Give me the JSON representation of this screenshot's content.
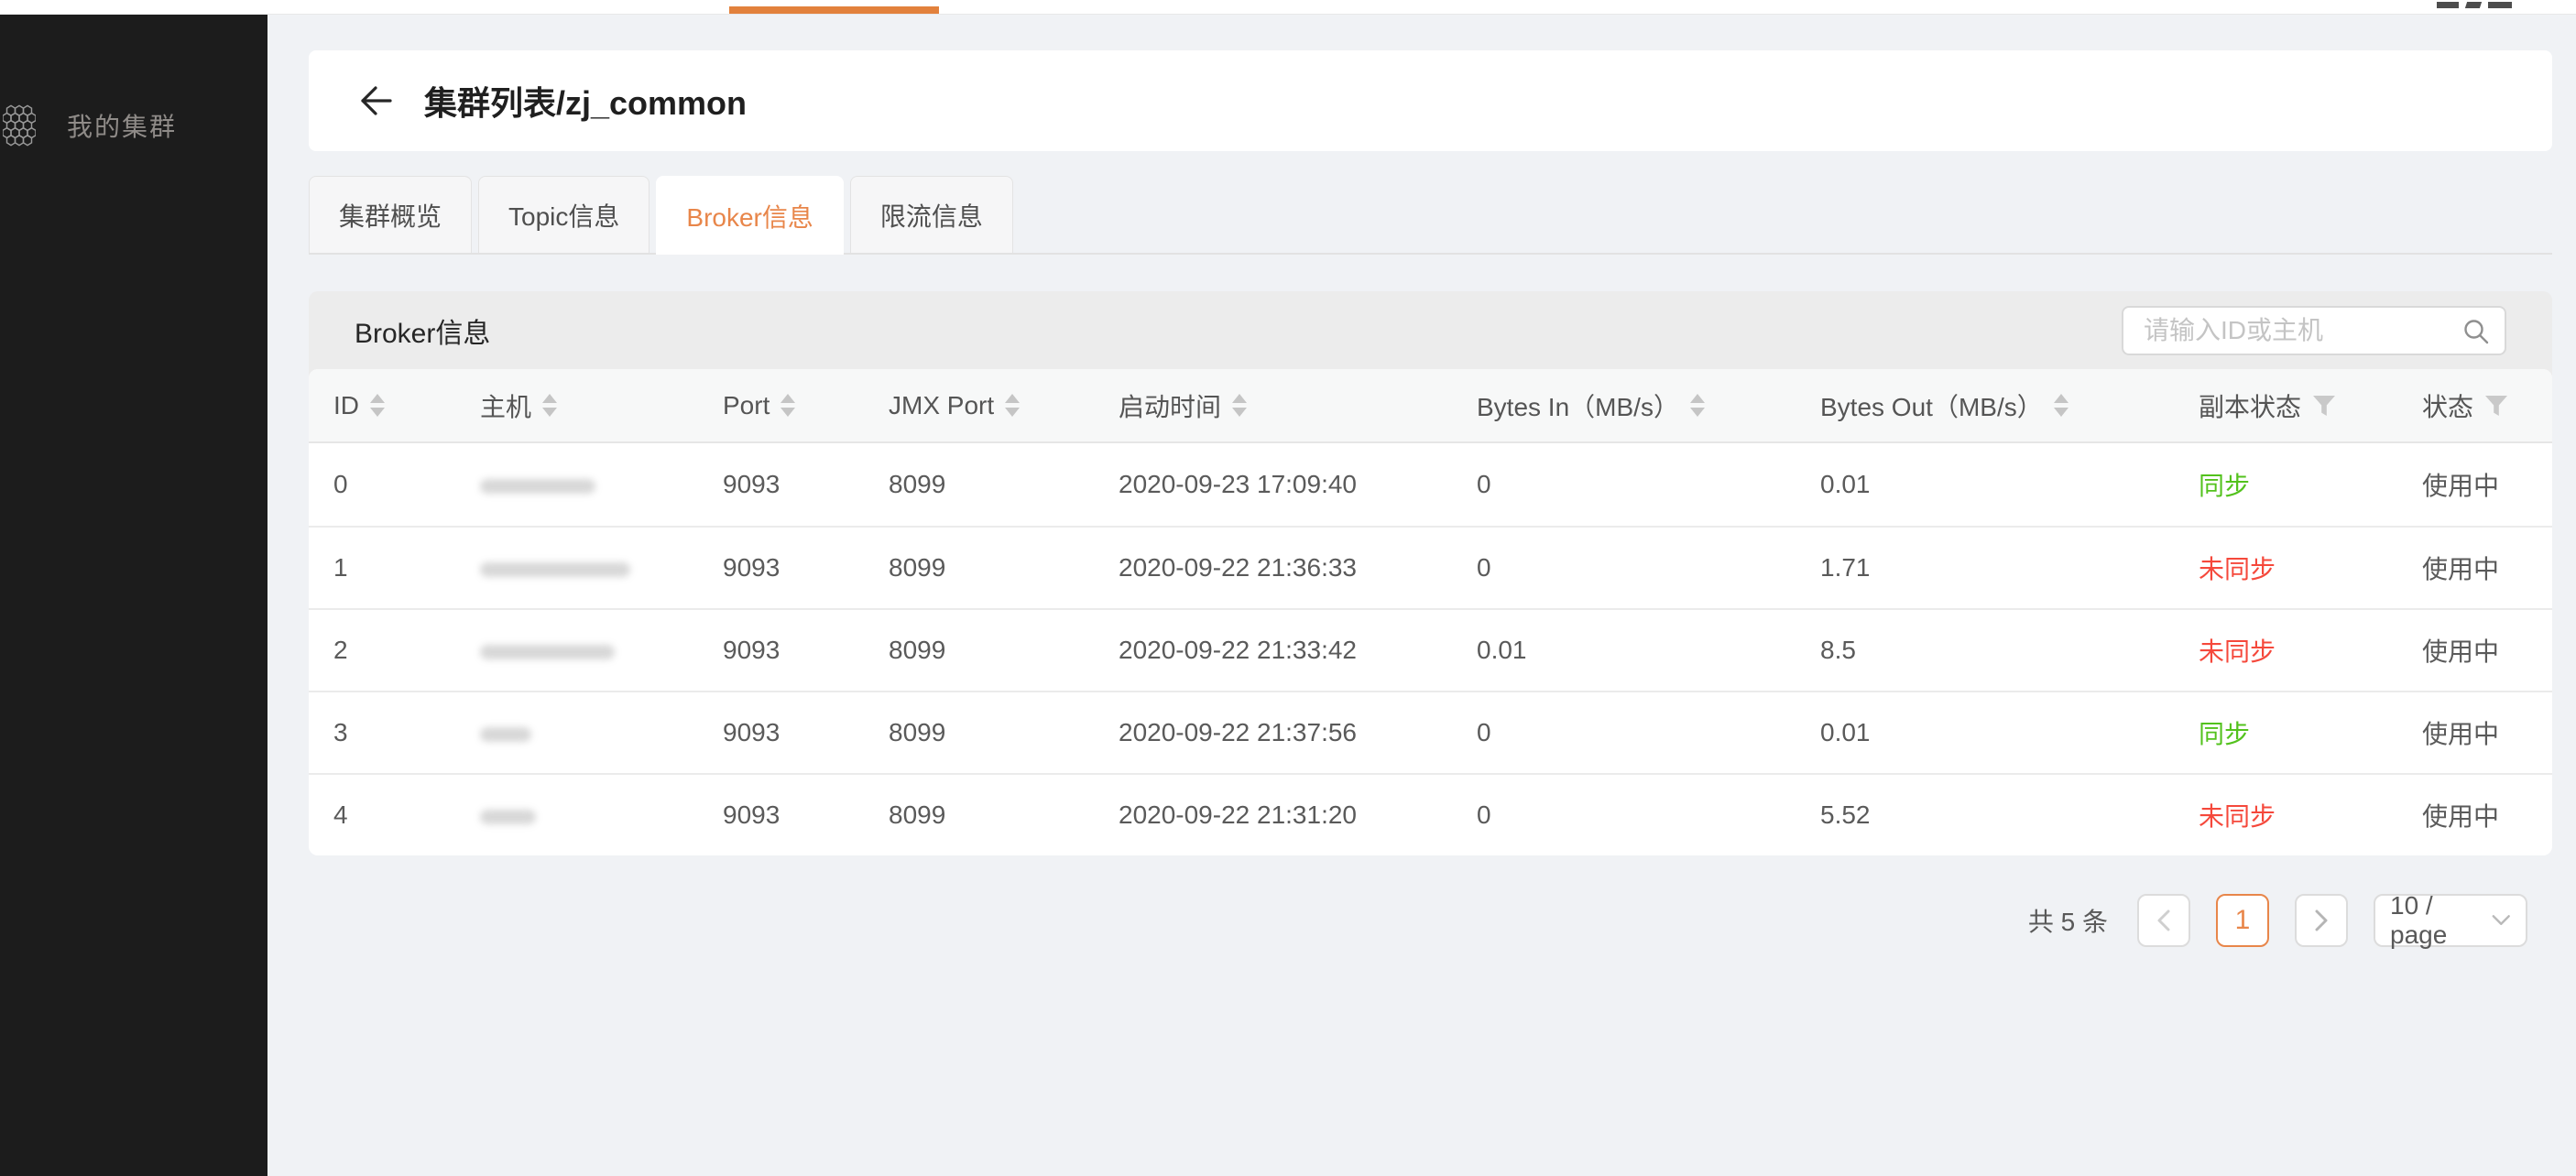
{
  "colors": {
    "accent_orange": "#e8864a",
    "indicator_orange": "#e2813c",
    "success_green": "#53c21d",
    "danger_red": "#f5483b",
    "sidebar_bg": "#1c1c1c"
  },
  "topbar": {
    "active_indicator": true
  },
  "sidebar": {
    "items": [
      {
        "label": "我的集群",
        "icon": "honeycomb-cluster-icon"
      }
    ]
  },
  "header": {
    "back_icon": "arrow-left-icon",
    "title": "集群列表/zj_common"
  },
  "tabs": [
    {
      "label": "集群概览",
      "active": false
    },
    {
      "label": "Topic信息",
      "active": false
    },
    {
      "label": "Broker信息",
      "active": true
    },
    {
      "label": "限流信息",
      "active": false
    }
  ],
  "panel": {
    "title": "Broker信息",
    "search": {
      "placeholder": "请输入ID或主机",
      "icon": "search-icon",
      "value": ""
    }
  },
  "table": {
    "columns": [
      {
        "key": "id",
        "label": "ID",
        "control": "sorter"
      },
      {
        "key": "host",
        "label": "主机",
        "control": "sorter"
      },
      {
        "key": "port",
        "label": "Port",
        "control": "sorter"
      },
      {
        "key": "jmx-port",
        "label": "JMX Port",
        "control": "sorter"
      },
      {
        "key": "start-time",
        "label": "启动时间",
        "control": "sorter"
      },
      {
        "key": "bytes-in",
        "label": "Bytes In（MB/s）",
        "control": "sorter"
      },
      {
        "key": "bytes-out",
        "label": "Bytes Out（MB/s）",
        "control": "sorter"
      },
      {
        "key": "replica-status",
        "label": "副本状态",
        "control": "filter"
      },
      {
        "key": "status",
        "label": "状态",
        "control": "filter"
      }
    ],
    "rows": [
      {
        "id": "0",
        "host_redacted": true,
        "host_smudge_w": 126,
        "port": "9093",
        "jmx_port": "8099",
        "start_time": "2020-09-23 17:09:40",
        "bytes_in": "0",
        "bytes_out": "0.01",
        "replica_status": "同步",
        "replica_state": "synced",
        "status": "使用中"
      },
      {
        "id": "1",
        "host_redacted": true,
        "host_smudge_w": 164,
        "port": "9093",
        "jmx_port": "8099",
        "start_time": "2020-09-22 21:36:33",
        "bytes_in": "0",
        "bytes_out": "1.71",
        "replica_status": "未同步",
        "replica_state": "unsynced",
        "status": "使用中"
      },
      {
        "id": "2",
        "host_redacted": true,
        "host_smudge_w": 147,
        "port": "9093",
        "jmx_port": "8099",
        "start_time": "2020-09-22 21:33:42",
        "bytes_in": "0.01",
        "bytes_out": "8.5",
        "replica_status": "未同步",
        "replica_state": "unsynced",
        "status": "使用中"
      },
      {
        "id": "3",
        "host_redacted": true,
        "host_smudge_w": 56,
        "port": "9093",
        "jmx_port": "8099",
        "start_time": "2020-09-22 21:37:56",
        "bytes_in": "0",
        "bytes_out": "0.01",
        "replica_status": "同步",
        "replica_state": "synced",
        "status": "使用中"
      },
      {
        "id": "4",
        "host_redacted": true,
        "host_smudge_w": 61,
        "port": "9093",
        "jmx_port": "8099",
        "start_time": "2020-09-22 21:31:20",
        "bytes_in": "0",
        "bytes_out": "5.52",
        "replica_status": "未同步",
        "replica_state": "unsynced",
        "status": "使用中"
      }
    ]
  },
  "pagination": {
    "total_text": "共 5 条",
    "prev_icon": "chevron-left-icon",
    "active_page": "1",
    "next_icon": "chevron-right-icon",
    "page_size": "10 / page",
    "page_size_icon": "chevron-down-icon"
  }
}
